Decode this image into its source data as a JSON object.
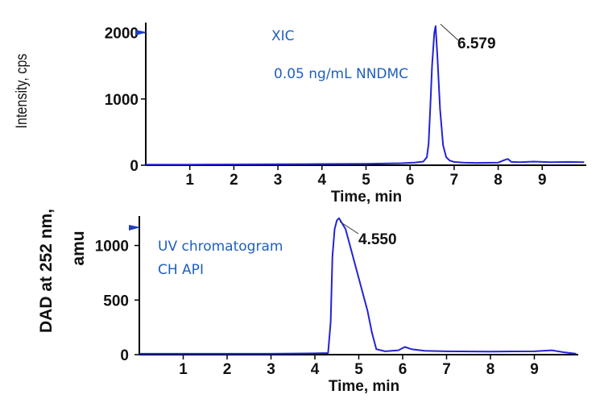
{
  "chart_data": [
    {
      "type": "line",
      "xlabel": "Time, min",
      "ylabel": "Intensity, cps",
      "xlim": [
        0,
        9.95
      ],
      "ylim": [
        0,
        2150
      ],
      "xticks": [
        "1",
        "2",
        "3",
        "4",
        "5",
        "6",
        "7",
        "8",
        "9"
      ],
      "yticks": [
        "0",
        "1000",
        "2000"
      ],
      "annotations": [
        "XIC",
        "0.05 ng/mL NNDMC"
      ],
      "peak_label": "6.579",
      "peak": {
        "x": 6.579,
        "y": 2100
      },
      "series": [
        {
          "x": [
            0.0,
            1.0,
            2.0,
            3.0,
            4.0,
            5.0,
            5.8,
            6.1,
            6.3,
            6.38,
            6.42,
            6.46,
            6.5,
            6.55,
            6.579,
            6.62,
            6.68,
            6.75,
            6.82,
            6.9,
            7.0,
            7.2,
            7.5,
            8.0,
            8.15,
            8.22,
            8.3,
            8.5,
            8.8,
            9.2,
            9.6,
            9.95
          ],
          "y": [
            8,
            10,
            12,
            14,
            18,
            22,
            30,
            40,
            55,
            120,
            320,
            900,
            1500,
            2000,
            2100,
            1650,
            850,
            300,
            120,
            70,
            50,
            40,
            35,
            40,
            80,
            95,
            50,
            45,
            55,
            45,
            50,
            45
          ]
        }
      ]
    },
    {
      "type": "line",
      "xlabel": "Time, min",
      "ylabel": "DAD at 252 nm, amu",
      "xlim": [
        0,
        9.95
      ],
      "ylim": [
        0,
        1270
      ],
      "xticks": [
        "1",
        "2",
        "3",
        "4",
        "5",
        "6",
        "7",
        "8",
        "9"
      ],
      "yticks": [
        "0",
        "500",
        "1000"
      ],
      "annotations": [
        "UV chromatogram",
        "CH API"
      ],
      "peak_label": "4.550",
      "peak": {
        "x": 4.55,
        "y": 1250
      },
      "series": [
        {
          "x": [
            0.0,
            1.0,
            2.0,
            3.0,
            4.0,
            4.3,
            4.36,
            4.4,
            4.45,
            4.5,
            4.55,
            4.7,
            5.0,
            5.2,
            5.3,
            5.4,
            5.6,
            5.9,
            6.05,
            6.2,
            6.5,
            7.0,
            8.0,
            9.0,
            9.4,
            9.7,
            9.95
          ],
          "y": [
            8,
            8,
            8,
            8,
            12,
            15,
            300,
            900,
            1150,
            1230,
            1250,
            1150,
            700,
            400,
            200,
            50,
            30,
            40,
            70,
            50,
            35,
            30,
            28,
            30,
            40,
            20,
            8
          ]
        }
      ]
    }
  ]
}
